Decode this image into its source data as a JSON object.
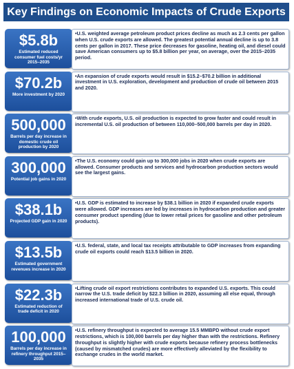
{
  "header": {
    "title": "Key Findings on Economic Impacts of Crude Exports"
  },
  "findings": [
    {
      "figure": "$5.8b",
      "caption": "Estimated reduced consumer fuel costs/yr 2015–2035",
      "text": "•U.S. weighted average petroleum product prices decline as much as 2.3 cents per gallon when U.S. crude exports are allowed.  The greatest potential annual decline is up to 3.8 cents per gallon in 2017.  These price decreases for gasoline, heating oil, and diesel could save American consumers up to $5.8 billion per year, on average, over the 2015–2035 period."
    },
    {
      "figure": "$70.2b",
      "caption": "More investment by 2020",
      "text": "•An expansion of crude exports would result in $15.2–$70.2 billion in additional investment in U.S. exploration, development and production of crude oil between 2015 and 2020."
    },
    {
      "figure": "500,000",
      "caption": "Barrels per day increase in domestic crude oil production by 2020",
      "text": "•With crude exports, U.S. oil production is expected to grow faster and could result in incremental U.S. oil production of between 110,000–500,000 barrels per day in 2020."
    },
    {
      "figure": "300,000",
      "caption": "Potential job gains in 2020",
      "text": "•The U.S. economy could gain up to 300,000 jobs in 2020 when crude exports are allowed.  Consumer products and services and hydrocarbon production sectors would see the largest gains."
    },
    {
      "figure": "$38.1b",
      "caption": "Projected GDP gain in 2020",
      "text": "•U.S. GDP is estimated to increase by $38.1 billion in 2020 if expanded crude exports were allowed. GDP increases are led by increases in hydrocarbon production and greater consumer product spending (due to lower retail prices for gasoline and other petroleum products)."
    },
    {
      "figure": "$13.5b",
      "caption": "Estimated government revenues increase in 2020",
      "text": "•U.S. federal, state, and local tax receipts attributable to GDP increases from expanding crude oil exports could reach $13.5 billion in 2020."
    },
    {
      "figure": "$22.3b",
      "caption": "Estimated reduction of trade deficit in 2020",
      "text": "•Lifting crude oil export restrictions contributes to expanded U.S. exports.  This could narrow the U.S. trade deficit by $22.3 billion in 2020, assuming all else equal, through increased international trade of U.S. crude oil."
    },
    {
      "figure": "100,000",
      "caption": "Barrels per day increase in refinery throughput 2015–2035",
      "text": "•U.S. refinery throughput is expected to average 15.5 MMBPD without crude export restrictions, which is 100,000 barrels per day higher than with the restrictions.  Refinery throughput is slightly higher with crude exports because refinery process bottlenecks (caused by mismatched crudes) are more effectively alleviated by the flexibility to exchange crudes in the world market."
    }
  ]
}
